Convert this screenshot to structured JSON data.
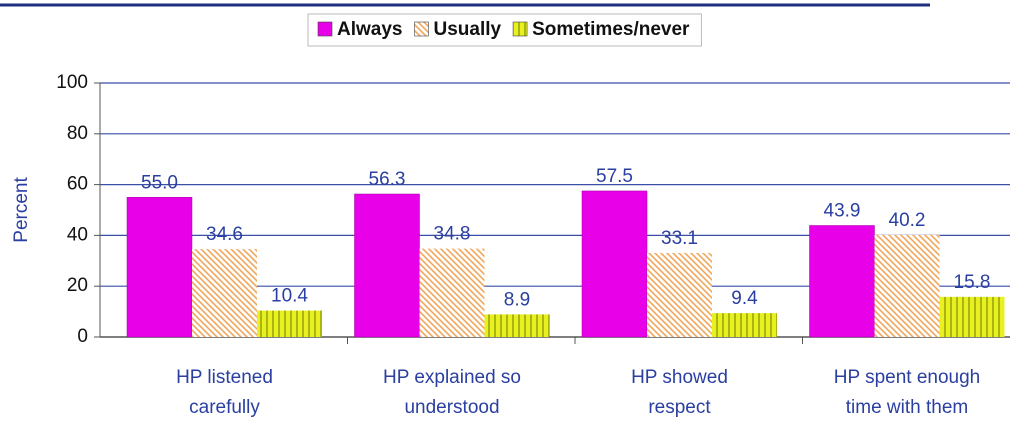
{
  "chart_data": {
    "type": "bar",
    "y_label": "Percent",
    "categories": [
      [
        "HP listened",
        "carefully"
      ],
      [
        "HP explained so",
        "understood"
      ],
      [
        "HP showed",
        "respect"
      ],
      [
        "HP spent enough",
        "time with them"
      ]
    ],
    "series": [
      {
        "name": "Always",
        "color": "#e800e8",
        "pattern": "solid",
        "values": [
          55.0,
          56.3,
          57.5,
          43.9
        ],
        "value_labels": [
          "55.0",
          "56.3",
          "57.5",
          "43.9"
        ]
      },
      {
        "name": "Usually",
        "color": "#f2a65a",
        "pattern": "diagonal",
        "values": [
          34.6,
          34.8,
          33.1,
          40.2
        ],
        "value_labels": [
          "34.6",
          "34.8",
          "33.1",
          "40.2"
        ]
      },
      {
        "name": "Sometimes/never",
        "color": "#e8f020",
        "pattern": "vertical",
        "values": [
          10.4,
          8.9,
          9.4,
          15.8
        ],
        "value_labels": [
          "10.4",
          "8.9",
          "9.4",
          "15.8"
        ]
      }
    ],
    "ylim": [
      0,
      100
    ],
    "yticks": [
      0,
      20,
      40,
      60,
      80,
      100
    ],
    "grid": true,
    "legend": "top"
  }
}
